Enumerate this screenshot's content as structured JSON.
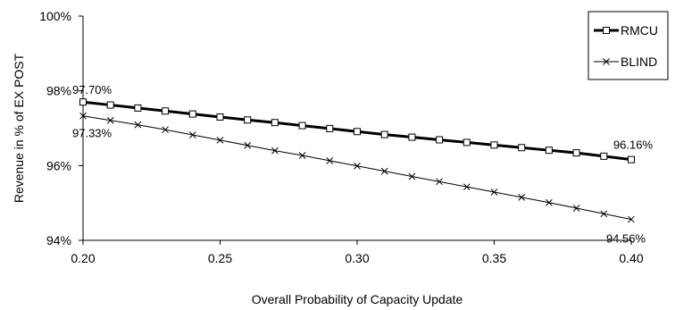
{
  "chart_data": {
    "type": "line",
    "xlabel": "Overall Probability  of Capacity Update",
    "ylabel": "Revenue in % of EX POST",
    "x": [
      0.2,
      0.21,
      0.22,
      0.23,
      0.24,
      0.25,
      0.26,
      0.27,
      0.28,
      0.29,
      0.3,
      0.31,
      0.32,
      0.33,
      0.34,
      0.35,
      0.36,
      0.37,
      0.38,
      0.39,
      0.4
    ],
    "xlim": [
      0.2,
      0.4
    ],
    "ylim": [
      94,
      100
    ],
    "x_ticks": [
      "0.20",
      "0.25",
      "0.30",
      "0.35",
      "0.40"
    ],
    "y_ticks": [
      "94%",
      "96%",
      "98%",
      "100%"
    ],
    "legend_position": "top-right",
    "grid": false,
    "series": [
      {
        "name": "RMCU",
        "marker": "square",
        "color": "#000000",
        "values": [
          97.7,
          97.62,
          97.54,
          97.46,
          97.38,
          97.3,
          97.22,
          97.15,
          97.07,
          96.99,
          96.91,
          96.83,
          96.76,
          96.69,
          96.62,
          96.55,
          96.48,
          96.41,
          96.34,
          96.25,
          96.16
        ]
      },
      {
        "name": "BLIND",
        "marker": "x",
        "color": "#000000",
        "values": [
          97.33,
          97.21,
          97.09,
          96.96,
          96.82,
          96.68,
          96.54,
          96.4,
          96.27,
          96.13,
          95.99,
          95.85,
          95.71,
          95.57,
          95.43,
          95.29,
          95.15,
          95.01,
          94.86,
          94.71,
          94.56
        ]
      }
    ],
    "annotations": [
      {
        "series": "RMCU",
        "point": "first",
        "text": "97.70%"
      },
      {
        "series": "BLIND",
        "point": "first",
        "text": "97.33%"
      },
      {
        "series": "RMCU",
        "point": "last",
        "text": "96.16%"
      },
      {
        "series": "BLIND",
        "point": "last",
        "text": "94.56%"
      }
    ]
  }
}
